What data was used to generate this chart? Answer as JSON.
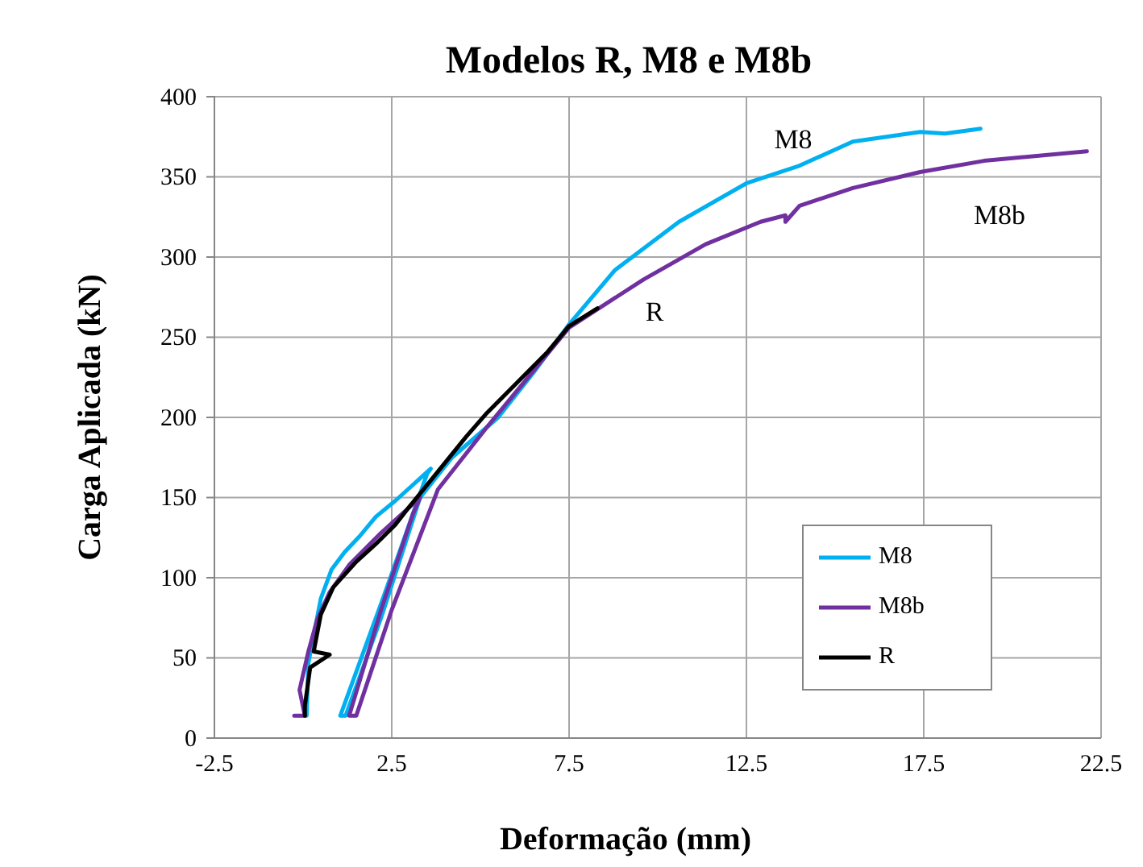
{
  "chart_data": {
    "type": "line",
    "title": "Modelos R, M8 e M8b",
    "xlabel": "Deformação (mm)",
    "ylabel": "Carga Aplicada  (kN)",
    "xlim": [
      -2.5,
      22.5
    ],
    "xticks": [
      -2.5,
      2.5,
      7.5,
      12.5,
      17.5,
      22.5
    ],
    "ylim": [
      0,
      400
    ],
    "yticks": [
      0,
      50,
      100,
      150,
      200,
      250,
      300,
      350,
      400
    ],
    "grid": true,
    "legend": "bottom right",
    "marker": "none",
    "line_style": "solid",
    "series": [
      {
        "name": "M8",
        "color": "#00b0f0",
        "x": [
          0.1,
          0.15,
          0.5,
          0.8,
          1.17,
          1.6,
          2.05,
          2.6,
          3.25,
          3.6,
          3.5,
          2.3,
          1.05,
          1.2,
          2.2,
          3.3,
          4.2,
          5.5,
          6.5,
          7.5,
          8.8,
          10.6,
          12.5,
          14.0,
          15.5,
          17.4,
          18.1,
          19.1
        ],
        "values": [
          14,
          47,
          87,
          105,
          116,
          126,
          138,
          148,
          161,
          168,
          165,
          90,
          14,
          14,
          75,
          150,
          175,
          200,
          228,
          258,
          292,
          322,
          346,
          357,
          372,
          378,
          377,
          380
        ]
      },
      {
        "name": "M8b",
        "color": "#7030a0",
        "x": [
          -0.25,
          0.05,
          -0.1,
          0.15,
          0.4,
          0.75,
          1.3,
          2.2,
          3.3,
          3.1,
          2.2,
          1.3,
          1.5,
          2.5,
          3.8,
          5.15,
          7.5,
          9.6,
          11.35,
          12.9,
          13.6,
          13.6,
          14.0,
          15.5,
          17.4,
          19.2,
          22.1
        ],
        "values": [
          14,
          14,
          30,
          54,
          74,
          91,
          108,
          128,
          150,
          140,
          80,
          14,
          14,
          80,
          155,
          193,
          256,
          286,
          308,
          322,
          326,
          322,
          332,
          343,
          353,
          360,
          366
        ]
      },
      {
        "name": "R",
        "color": "#000000",
        "x": [
          0.05,
          0.05,
          0.2,
          0.75,
          0.3,
          0.5,
          0.85,
          1.5,
          2.05,
          2.6,
          2.95,
          3.5,
          4.6,
          5.15,
          6.9,
          7.5,
          8.3
        ],
        "values": [
          14,
          20,
          44,
          52,
          54,
          77,
          94,
          110,
          121,
          133,
          143,
          158,
          188,
          202,
          241,
          257,
          268
        ]
      }
    ],
    "annotations": [
      "M8",
      "M8b",
      "R"
    ]
  }
}
